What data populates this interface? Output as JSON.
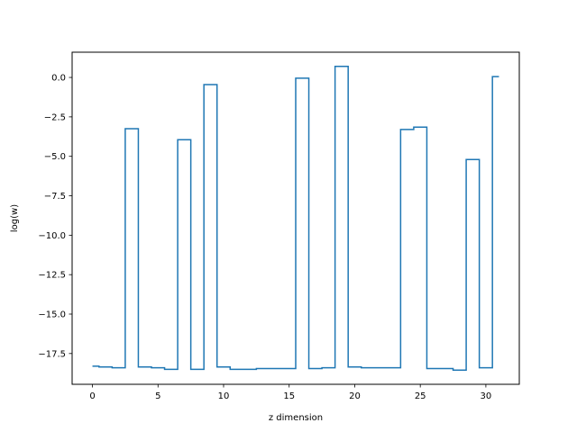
{
  "chart_data": {
    "type": "line",
    "style": "step-mid",
    "xlabel": "z dimension",
    "ylabel": "log(w)",
    "xlim": [
      -1.55,
      32.55
    ],
    "ylim": [
      -19.45,
      1.6
    ],
    "xticks": [
      0,
      5,
      10,
      15,
      20,
      25,
      30
    ],
    "yticks": [
      0.0,
      -2.5,
      -5.0,
      -7.5,
      -10.0,
      -12.5,
      -15.0,
      -17.5
    ],
    "ytick_labels": [
      "0.0",
      "−2.5",
      "−5.0",
      "−7.5",
      "−10.0",
      "−12.5",
      "−15.0",
      "−17.5"
    ],
    "grid": false,
    "color": "#1f77b4",
    "series": [
      {
        "x": [
          0,
          1,
          2,
          3,
          4,
          5,
          6,
          7,
          8,
          9,
          10,
          11,
          12,
          13,
          14,
          15,
          16,
          17,
          18,
          19,
          20,
          21,
          22,
          23,
          24,
          25,
          26,
          27,
          28,
          29,
          30,
          31
        ],
        "values": [
          -18.3,
          -18.35,
          -18.4,
          -3.25,
          -18.35,
          -18.4,
          -18.5,
          -3.95,
          -18.5,
          -0.45,
          -18.35,
          -18.5,
          -18.5,
          -18.45,
          -18.45,
          -18.45,
          -0.05,
          -18.45,
          -18.4,
          0.7,
          -18.35,
          -18.4,
          -18.4,
          -18.4,
          -3.3,
          -3.15,
          -18.45,
          -18.45,
          -18.55,
          -5.2,
          -18.4,
          0.05
        ]
      }
    ]
  }
}
